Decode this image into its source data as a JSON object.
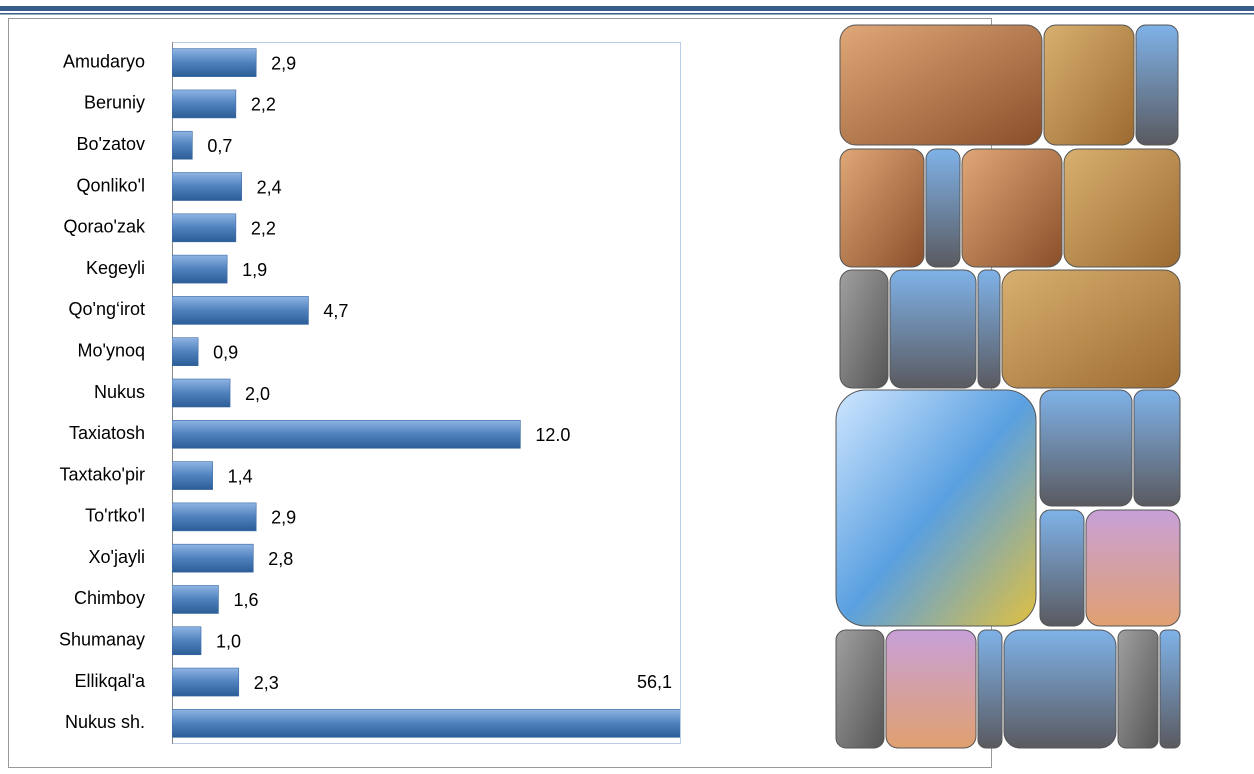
{
  "chart_data": {
    "type": "bar",
    "orientation": "horizontal",
    "categories": [
      "Amudaryo",
      "Beruniy",
      "Bo'zatov",
      "Qonliko'l",
      "Qorao'zak",
      "Kegeyli",
      "Qo'ng‘irot",
      "Mo'ynoq",
      "Nukus",
      "Taxiatosh",
      "Taxtako'pir",
      "To'rtko'l",
      "Xo'jayli",
      "Chimboy",
      "Shumanay",
      "Ellikqal'a",
      "Nukus sh."
    ],
    "values": [
      2.9,
      2.2,
      0.7,
      2.4,
      2.2,
      1.9,
      4.7,
      0.9,
      2.0,
      12.0,
      1.4,
      2.9,
      2.8,
      1.6,
      1.0,
      2.3,
      56.1
    ],
    "value_labels": [
      "2,9",
      "2,2",
      "0,7",
      "2,4",
      "2,2",
      "1,9",
      "4,7",
      "0,9",
      "2,0",
      "12.0",
      "1,4",
      "2,9",
      "2,8",
      "1,6",
      "1,0",
      "2,3",
      "56,1"
    ],
    "color": "#4f81bd",
    "xlim": [
      0,
      17.5
    ]
  }
}
